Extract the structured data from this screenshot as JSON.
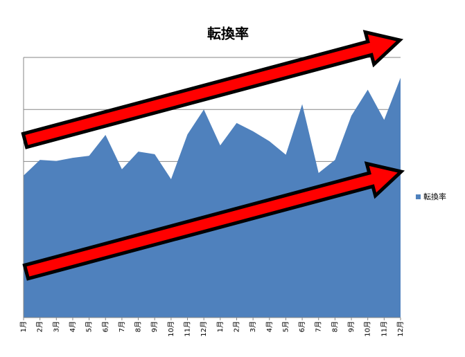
{
  "chart_data": {
    "type": "area",
    "title": "転換率",
    "categories": [
      "1月",
      "2月",
      "3月",
      "4月",
      "5月",
      "6月",
      "7月",
      "8月",
      "9月",
      "10月",
      "11月",
      "12月",
      "1月",
      "2月",
      "3月",
      "4月",
      "5月",
      "6月",
      "7月",
      "8月",
      "9月",
      "10月",
      "11月",
      "12月"
    ],
    "series": [
      {
        "name": "転換率",
        "color": "#4f81bd",
        "values": [
          2.73,
          3.03,
          3.01,
          3.07,
          3.11,
          3.51,
          2.85,
          3.19,
          3.14,
          2.66,
          3.52,
          4.0,
          3.31,
          3.74,
          3.58,
          3.39,
          3.13,
          4.1,
          2.78,
          3.03,
          3.88,
          4.38,
          3.8,
          4.61
        ]
      }
    ],
    "ylim": [
      0,
      5
    ],
    "ygrid": [
      0,
      1,
      2,
      3,
      4,
      5
    ],
    "legend": "right"
  }
}
